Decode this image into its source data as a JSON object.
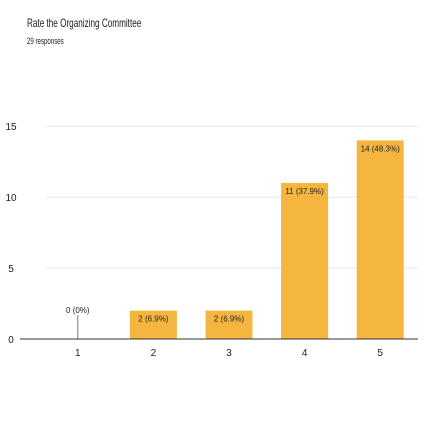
{
  "header": {
    "title": "Rate the Organizing Committee",
    "responses": "29 responses"
  },
  "chart_data": {
    "type": "bar",
    "categories": [
      "1",
      "2",
      "3",
      "4",
      "5"
    ],
    "values": [
      0,
      2,
      2,
      11,
      14
    ],
    "data_labels": [
      "0 (0%)",
      "2 (6.9%)",
      "2 (6.9%)",
      "11 (37.9%)",
      "14 (48.3%)"
    ],
    "ylim": [
      0,
      16
    ],
    "yticks": [
      0,
      5,
      10,
      15
    ],
    "grid": true,
    "bar_color": "#f4b63f",
    "title": "",
    "xlabel": "",
    "ylabel": ""
  }
}
